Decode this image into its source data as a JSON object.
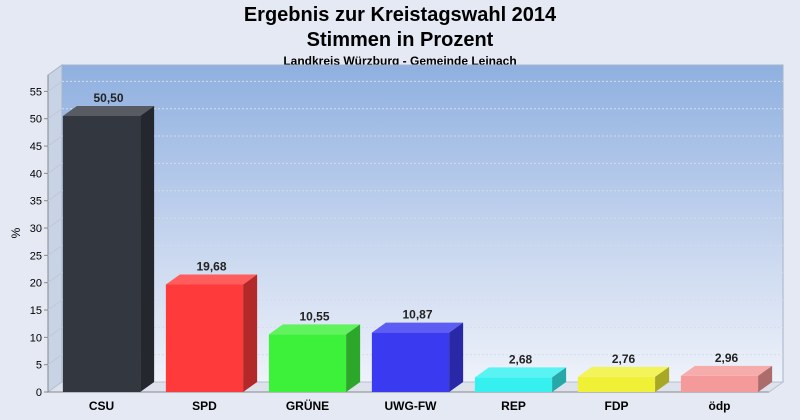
{
  "chart_data": {
    "type": "bar",
    "title": "Ergebnis zur Kreistagswahl 2014",
    "subtitle": "Stimmen in Prozent",
    "caption": "Landkreis Würzburg - Gemeinde Leinach",
    "ylabel": "%",
    "xlabel": "",
    "ylim": [
      0,
      58
    ],
    "yticks": [
      0,
      5,
      10,
      15,
      20,
      25,
      30,
      35,
      40,
      45,
      50,
      55
    ],
    "categories": [
      "CSU",
      "SPD",
      "GRÜNE",
      "UWG-FW",
      "REP",
      "FDP",
      "ödp"
    ],
    "values": [
      50.5,
      19.68,
      10.55,
      10.87,
      2.68,
      2.76,
      2.96
    ],
    "value_labels": [
      "50,50",
      "19,68",
      "10,55",
      "10,87",
      "2,68",
      "2,76",
      "2,96"
    ],
    "colors": [
      "#333740",
      "#ff3a3a",
      "#3df03a",
      "#3a3af0",
      "#36f0f0",
      "#f0f036",
      "#f59a9a"
    ],
    "grid": true,
    "legend": "none"
  }
}
